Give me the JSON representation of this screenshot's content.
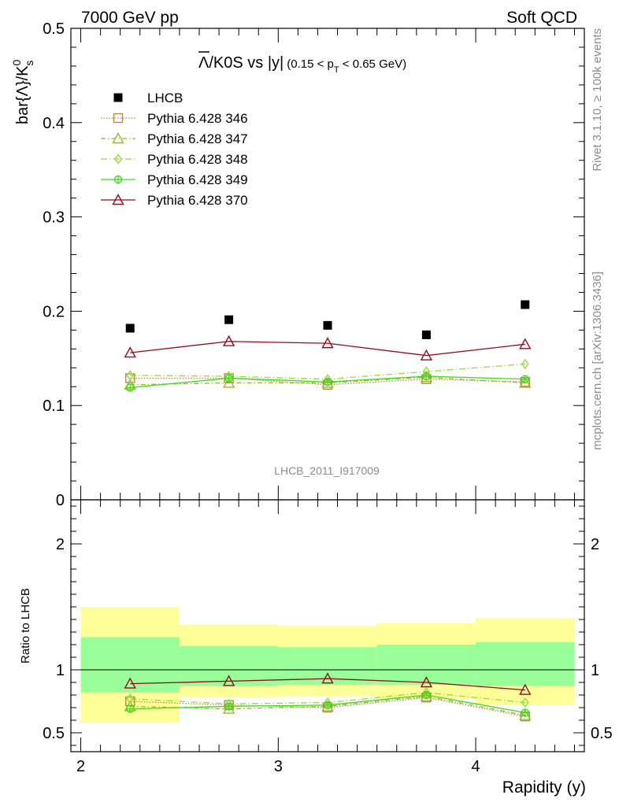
{
  "header": {
    "left": "7000 GeV pp",
    "right": "Soft QCD"
  },
  "side_labels": {
    "rivet": "Rivet 3.1.10, ≥ 100k events",
    "mcplots": "mcplots.cern.ch [arXiv:1306.3436]"
  },
  "watermark": "LHCB_2011_I917009",
  "chart_data": {
    "type": "scatter",
    "title": {
      "main": "Λ/K0S vs |y|",
      "overline_part": "Λ",
      "rest": "/K0S vs |y|",
      "sub_prefix": "(0.15 < p",
      "sub_subscript": "T",
      "sub_suffix": " < 0.65 GeV)"
    },
    "xlabel": "Rapidity (y)",
    "ylabel": "bar{Λ}/K",
    "ylabel_sup": "0",
    "ylabel_sub": "s",
    "ratio_ylabel": "Ratio to LHCB",
    "xlim": [
      1.95,
      4.55
    ],
    "ylim": [
      0,
      0.5
    ],
    "ratio_ylim": [
      0.35,
      2.35
    ],
    "x_ticks": [
      "2",
      "3",
      "4"
    ],
    "y_ticks": [
      "0",
      "0.1",
      "0.2",
      "0.3",
      "0.4",
      "0.5"
    ],
    "ratio_y_ticks": [
      "0.5",
      "1",
      "2"
    ],
    "x": [
      2.25,
      2.75,
      3.25,
      3.75,
      4.25
    ],
    "bin_edges": [
      2.0,
      2.5,
      3.0,
      3.5,
      4.0,
      4.5
    ],
    "data": {
      "name": "LHCB",
      "values": [
        0.182,
        0.191,
        0.185,
        0.175,
        0.207
      ],
      "color": "#000000"
    },
    "bands": {
      "inner_color": "#99ff99",
      "outer_color": "#ffff99",
      "inner": [
        [
          0.82,
          1.26
        ],
        [
          0.87,
          1.19
        ],
        [
          0.88,
          1.18
        ],
        [
          0.88,
          1.2
        ],
        [
          0.87,
          1.22
        ]
      ],
      "outer": [
        [
          0.58,
          1.5
        ],
        [
          0.78,
          1.36
        ],
        [
          0.79,
          1.35
        ],
        [
          0.77,
          1.37
        ],
        [
          0.72,
          1.41
        ]
      ]
    },
    "series": [
      {
        "name": "Pythia 6.428 346",
        "color": "#b48a3c",
        "dash": "1.5,2",
        "marker": "square-open",
        "values": [
          0.129,
          0.129,
          0.122,
          0.128,
          0.125
        ],
        "ratio": [
          0.75,
          0.72,
          0.7,
          0.78,
          0.63
        ]
      },
      {
        "name": "Pythia 6.428 347",
        "color": "#a0b428",
        "dash": "6,3,1.5,3",
        "marker": "triangle-open",
        "values": [
          0.122,
          0.124,
          0.124,
          0.13,
          0.124
        ],
        "ratio": [
          0.71,
          0.69,
          0.71,
          0.79,
          0.64
        ]
      },
      {
        "name": "Pythia 6.428 348",
        "color": "#96dc3c",
        "dash": "8,3,1.5,3",
        "marker": "diamond-open",
        "values": [
          0.132,
          0.131,
          0.128,
          0.136,
          0.144
        ],
        "ratio": [
          0.77,
          0.73,
          0.74,
          0.82,
          0.74
        ]
      },
      {
        "name": "Pythia 6.428 349",
        "color": "#3cdc1e",
        "dash": "",
        "marker": "circle-cross",
        "values": [
          0.119,
          0.129,
          0.125,
          0.131,
          0.128
        ],
        "ratio": [
          0.69,
          0.71,
          0.72,
          0.8,
          0.66
        ]
      },
      {
        "name": "Pythia 6.428 370",
        "color": "#960a1e",
        "dash": "",
        "marker": "triangle-open",
        "values": [
          0.156,
          0.168,
          0.166,
          0.153,
          0.165
        ],
        "ratio": [
          0.89,
          0.91,
          0.93,
          0.9,
          0.84
        ]
      }
    ]
  }
}
